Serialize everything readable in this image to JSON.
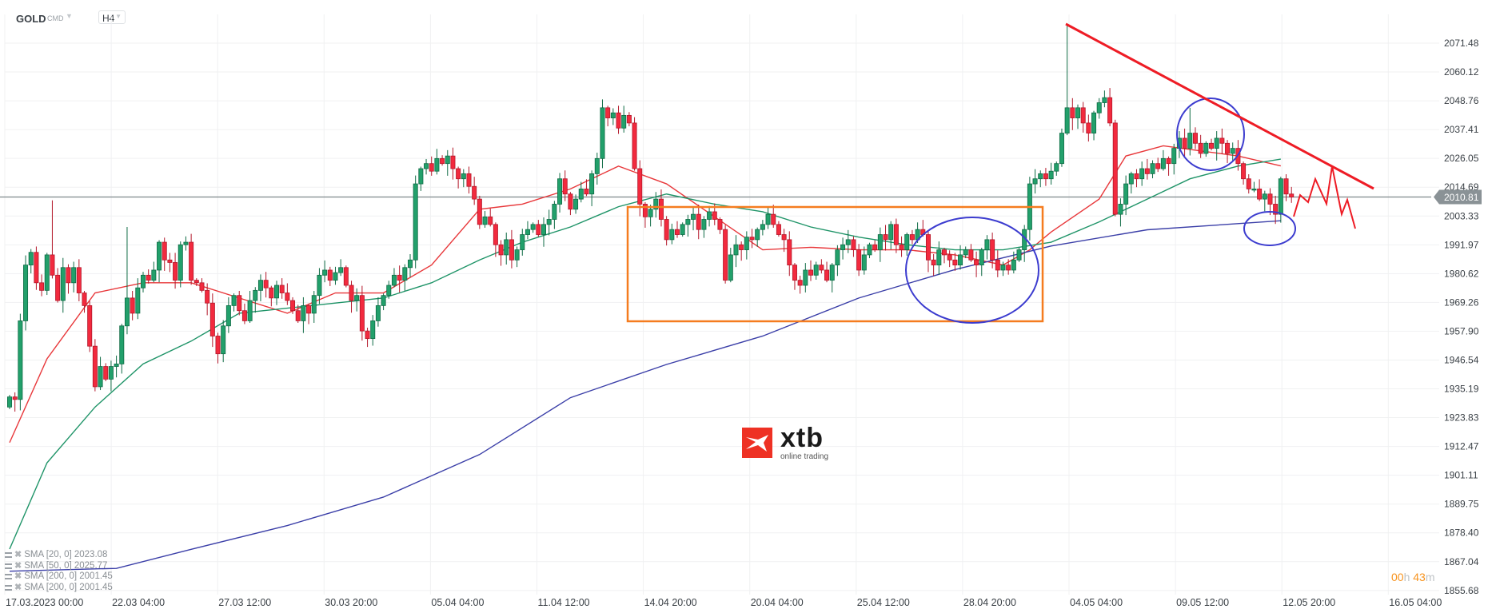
{
  "header": {
    "symbol": "GOLD",
    "instrument_type": "CMD",
    "timeframe": "H4"
  },
  "logo": {
    "brand": "xtb",
    "tagline": "online trading"
  },
  "timer": {
    "hours": "00",
    "h": "h",
    "minutes": "43",
    "m": "m"
  },
  "legend": [
    {
      "label": "SMA [20, 0] 2023.08"
    },
    {
      "label": "SMA [50, 0] 2025.77"
    },
    {
      "label": "SMA [200, 0] 2001.45"
    },
    {
      "label": "SMA [200, 0] 2001.45"
    }
  ],
  "colors": {
    "up": "#22a06b",
    "down": "#f22a3e",
    "sma20": "#e8373a",
    "sma50": "#1f9468",
    "sma200": "#3b3fa8",
    "annotation_box": "#f57c1f",
    "annotation_ellipse": "#3c3ccf",
    "annotation_line": "#ee1c25",
    "timer": "#f7931e"
  },
  "chart_data": {
    "type": "candlestick",
    "title": "",
    "ylim": [
      1855.68,
      2071.48
    ],
    "y_ticks": [
      "2071.48",
      "2060.12",
      "2048.76",
      "2037.41",
      "2026.05",
      "2014.69",
      "2003.33",
      "1991.97",
      "1980.62",
      "1969.26",
      "1957.90",
      "1946.54",
      "1935.19",
      "1923.83",
      "1912.47",
      "1901.11",
      "1889.75",
      "1878.40",
      "1867.04",
      "1855.68"
    ],
    "x_ticks": [
      "17.03.2023 00:00",
      "22.03 04:00",
      "27.03 12:00",
      "30.03 20:00",
      "05.04 04:00",
      "11.04 12:00",
      "14.04 20:00",
      "20.04 04:00",
      "25.04 12:00",
      "28.04 20:00",
      "04.05 04:00",
      "09.05 12:00",
      "12.05 20:00",
      "16.05 04:00"
    ],
    "current_price": "2010.81",
    "grid": true,
    "close": [
      1932,
      1931,
      1962,
      1984,
      1989,
      1977,
      1974,
      1988,
      1980,
      1970,
      1983,
      1977,
      1983,
      1973,
      1968,
      1952,
      1936,
      1944,
      1939,
      1944,
      1945,
      1960,
      1971,
      1965,
      1975,
      1980,
      1978,
      1982,
      1993,
      1986,
      1985,
      1978,
      1992,
      1993,
      1978,
      1977,
      1974,
      1969,
      1956,
      1949,
      1960,
      1968,
      1972,
      1966,
      1962,
      1970,
      1974,
      1978,
      1975,
      1971,
      1976,
      1973,
      1970,
      1966,
      1962,
      1968,
      1965,
      1972,
      1980,
      1982,
      1978,
      1981,
      1983,
      1976,
      1970,
      1972,
      1958,
      1955,
      1962,
      1968,
      1972,
      1976,
      1980,
      1978,
      1983,
      1986,
      2016,
      2022,
      2024,
      2021,
      2026,
      2024,
      2027,
      2022,
      2018,
      2020,
      2015,
      2010,
      2000,
      2003,
      2000,
      1992,
      1988,
      1994,
      1986,
      1990,
      1996,
      1998,
      2000,
      1996,
      2000,
      2002,
      2008,
      2018,
      2012,
      2006,
      2010,
      2014,
      2012,
      2020,
      2026,
      2046,
      2042,
      2044,
      2038,
      2043,
      2040,
      2022,
      2008,
      2003,
      2006,
      2010,
      2002,
      1994,
      1998,
      1996,
      2000,
      2002,
      2004,
      1998,
      2002,
      2005,
      2002,
      1998,
      1978,
      1988,
      1992,
      1990,
      1995,
      1994,
      1998,
      2000,
      2004,
      2000,
      1996,
      1994,
      1984,
      1978,
      1976,
      1982,
      1980,
      1984,
      1982,
      1978,
      1984,
      1990,
      1992,
      1994,
      1990,
      1982,
      1988,
      1992,
      1990,
      1996,
      1994,
      2000,
      1992,
      1990,
      1996,
      1994,
      1998,
      1996,
      1986,
      1984,
      1990,
      1988,
      1986,
      1984,
      1988,
      1990,
      1986,
      1984,
      1990,
      1994,
      1986,
      1982,
      1984,
      1982,
      1986,
      1990,
      1998,
      2016,
      2018,
      2020,
      2018,
      2021,
      2024,
      2036,
      2046,
      2042,
      2046,
      2040,
      2036,
      2044,
      2048,
      2050,
      2040,
      2004,
      2008,
      2016,
      2020,
      2018,
      2022,
      2020,
      2024,
      2022,
      2026,
      2024,
      2030,
      2034,
      2030,
      2036,
      2032,
      2028,
      2032,
      2030,
      2034,
      2032,
      2028,
      2030,
      2024,
      2018,
      2014,
      2014,
      2010,
      2012,
      2008,
      2004,
      2018,
      2012,
      2010.81
    ],
    "first_open": 1928,
    "high_extremes": {
      "8": 2009.5,
      "198": 2078.5,
      "221": 2046,
      "22": 1999
    },
    "series": [
      {
        "name": "SMA [20, 0]",
        "points": [
          [
            0,
            1914
          ],
          [
            7,
            1947
          ],
          [
            16,
            1973
          ],
          [
            25,
            1977
          ],
          [
            34,
            1977
          ],
          [
            43,
            1971
          ],
          [
            52,
            1965
          ],
          [
            61,
            1973
          ],
          [
            70,
            1973
          ],
          [
            79,
            1984
          ],
          [
            88,
            2006
          ],
          [
            96,
            2008
          ],
          [
            105,
            2014
          ],
          [
            114,
            2023
          ],
          [
            123,
            2016
          ],
          [
            132,
            2003
          ],
          [
            141,
            1990
          ],
          [
            150,
            1991
          ],
          [
            159,
            1990
          ],
          [
            168,
            1990
          ],
          [
            177,
            1988
          ],
          [
            186,
            1984
          ],
          [
            191,
            1990
          ],
          [
            195,
            1997
          ],
          [
            204,
            2010
          ],
          [
            209,
            2027
          ],
          [
            216,
            2031
          ],
          [
            223,
            2029
          ],
          [
            230,
            2027
          ],
          [
            238,
            2023.08
          ]
        ]
      },
      {
        "name": "SMA [50, 0]",
        "points": [
          [
            0,
            1872
          ],
          [
            7,
            1906
          ],
          [
            16,
            1928
          ],
          [
            25,
            1945
          ],
          [
            34,
            1954
          ],
          [
            43,
            1965
          ],
          [
            52,
            1967
          ],
          [
            61,
            1969
          ],
          [
            70,
            1971
          ],
          [
            79,
            1977
          ],
          [
            88,
            1986
          ],
          [
            96,
            1993
          ],
          [
            105,
            1999
          ],
          [
            114,
            2007
          ],
          [
            123,
            2012
          ],
          [
            132,
            2008
          ],
          [
            141,
            2005
          ],
          [
            150,
            1999
          ],
          [
            159,
            1995
          ],
          [
            168,
            1992
          ],
          [
            177,
            1990
          ],
          [
            186,
            1990
          ],
          [
            195,
            1993
          ],
          [
            204,
            2001
          ],
          [
            213,
            2010
          ],
          [
            221,
            2018
          ],
          [
            230,
            2023
          ],
          [
            238,
            2025.77
          ]
        ]
      },
      {
        "name": "SMA [200, 0]",
        "points": [
          [
            0,
            1863.3
          ],
          [
            20,
            1864.4
          ],
          [
            34,
            1871.9
          ],
          [
            52,
            1881.3
          ],
          [
            70,
            1892.5
          ],
          [
            88,
            1909.3
          ],
          [
            105,
            1931.7
          ],
          [
            123,
            1944.8
          ],
          [
            141,
            1956
          ],
          [
            159,
            1971
          ],
          [
            177,
            1982.2
          ],
          [
            195,
            1991.5
          ],
          [
            213,
            1997.9
          ],
          [
            238,
            2001.45
          ]
        ]
      }
    ]
  }
}
